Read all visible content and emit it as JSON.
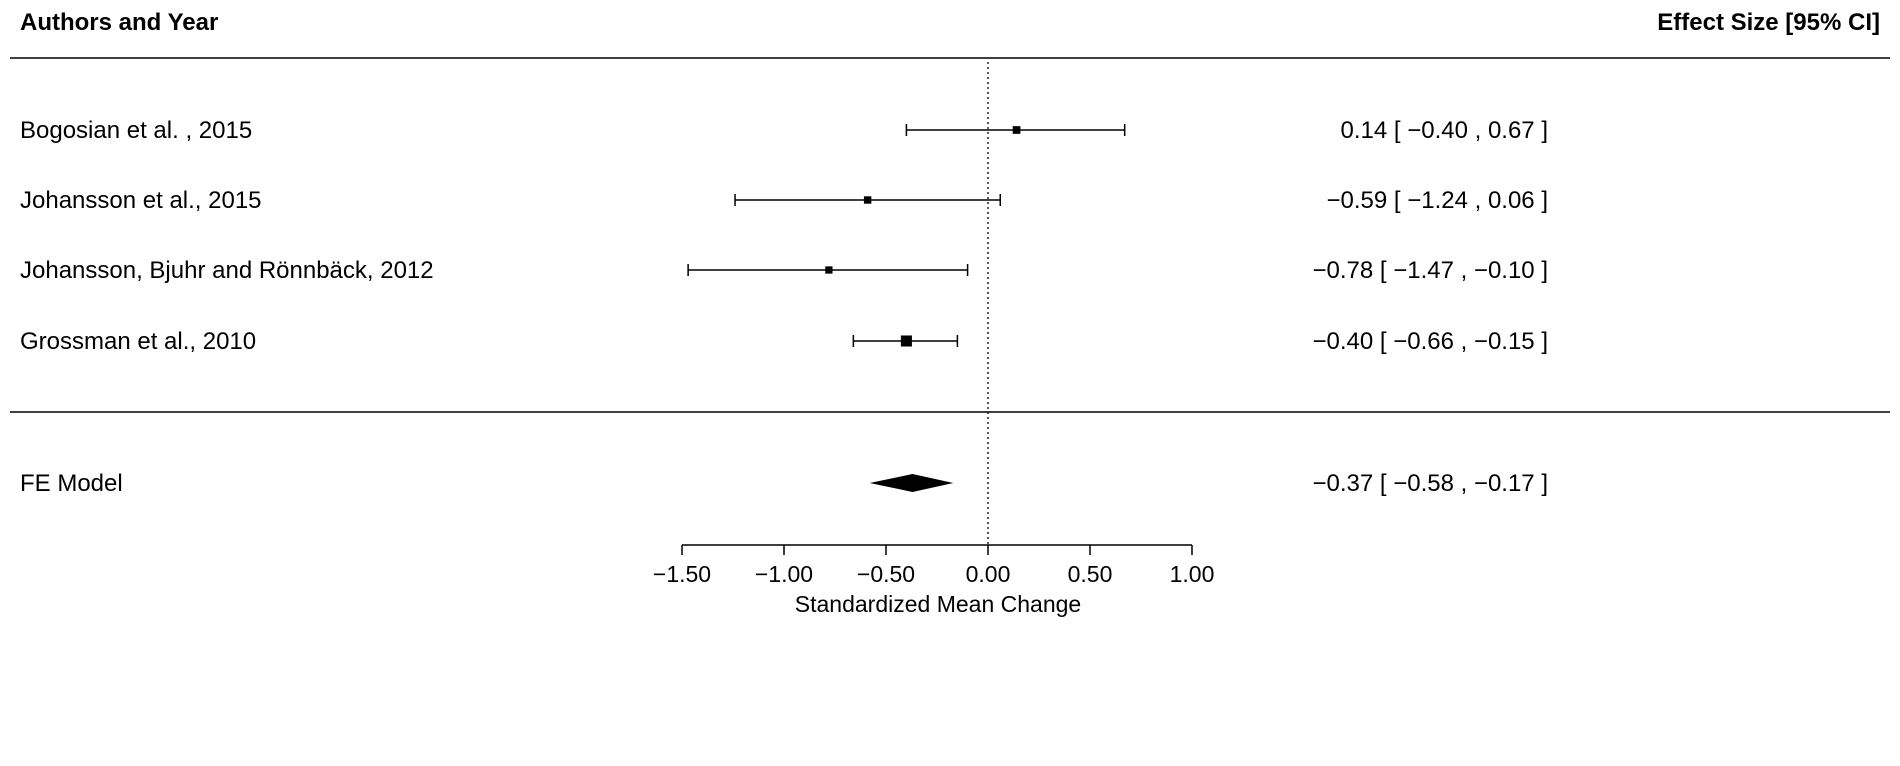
{
  "chart_data": {
    "type": "forest",
    "header_left": "Authors and Year",
    "header_right": "Effect Size [95% CI]",
    "xlabel": "Standardized Mean Change",
    "xlim": [
      -1.5,
      1.0
    ],
    "xticks": [
      -1.5,
      -1.0,
      -0.5,
      0.0,
      0.5,
      1.0
    ],
    "xtick_labels": [
      "−1.50",
      "−1.00",
      "−0.50",
      "0.00",
      "0.50",
      "1.00"
    ],
    "reference_line": 0.0,
    "studies": [
      {
        "label": "Bogosian et al. , 2015",
        "estimate": 0.14,
        "ci_low": -0.4,
        "ci_high": 0.67,
        "weight": 1,
        "ci_text": "0.14 [ −0.40 ,  0.67 ]"
      },
      {
        "label": "Johansson et al., 2015",
        "estimate": -0.59,
        "ci_low": -1.24,
        "ci_high": 0.06,
        "weight": 0.8,
        "ci_text": "−0.59 [ −1.24 ,  0.06 ]"
      },
      {
        "label": "Johansson, Bjuhr and Rönnbäck, 2012",
        "estimate": -0.78,
        "ci_low": -1.47,
        "ci_high": -0.1,
        "weight": 0.7,
        "ci_text": "−0.78 [ −1.47 , −0.10 ]"
      },
      {
        "label": "Grossman et al., 2010",
        "estimate": -0.4,
        "ci_low": -0.66,
        "ci_high": -0.15,
        "weight": 5,
        "ci_text": "−0.40 [ −0.66 , −0.15 ]"
      }
    ],
    "summary": {
      "label": "FE Model",
      "estimate": -0.37,
      "ci_low": -0.58,
      "ci_high": -0.17,
      "ci_text": "−0.37 [ −0.58 , −0.17 ]"
    }
  }
}
